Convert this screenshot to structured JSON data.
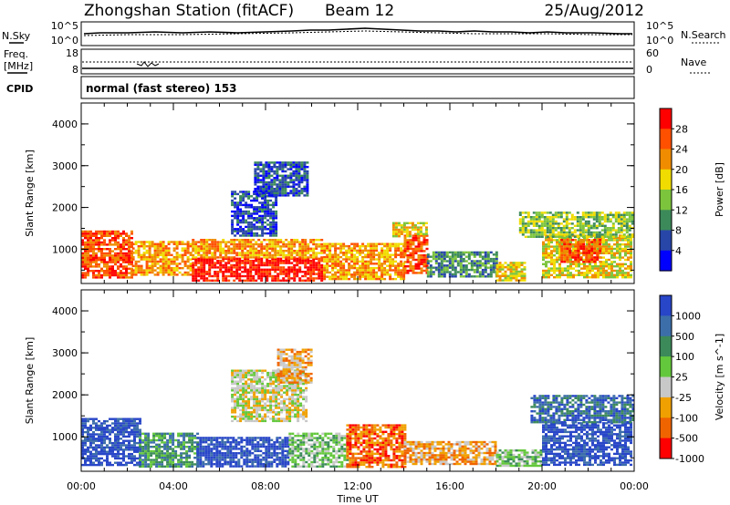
{
  "header": {
    "station": "Zhongshan Station (fitACF)",
    "beam": "Beam 12",
    "date": "25/Aug/2012"
  },
  "strips": {
    "nsky_label": "N.Sky",
    "nsky_ticks": [
      "10^5",
      "10^0"
    ],
    "nsearch_label": "N.Search",
    "nsearch_ticks": [
      "10^5",
      "10^0"
    ],
    "freq_label": "Freq.",
    "freq_unit": "[MHz]",
    "freq_ticks": [
      "18",
      "8"
    ],
    "nave_label": "Nave",
    "nave_ticks": [
      "60",
      "0"
    ],
    "cpid_label": "CPID",
    "cpid_mode": "normal (fast stereo) 153"
  },
  "chart_data": [
    {
      "type": "heatmap",
      "name": "power-panel",
      "ylabel": "Slant Range [km]",
      "ylim": [
        180,
        4500
      ],
      "yticks": [
        "1000",
        "2000",
        "3000",
        "4000"
      ],
      "ytick_values": [
        1000,
        2000,
        3000,
        4000
      ],
      "xlim": [
        0,
        24
      ],
      "colorbar_label": "Power [dB]",
      "colorbar_ticks": [
        "4",
        "8",
        "12",
        "16",
        "20",
        "24",
        "28"
      ],
      "colors": [
        "#0000ff",
        "#2846a8",
        "#3c8a5a",
        "#7cc43c",
        "#f0dc00",
        "#f08c00",
        "#ff5000",
        "#ff0000"
      ],
      "bands": [
        {
          "t0": 0.0,
          "t1": 2.2,
          "r0": 350,
          "r1": 1450,
          "level": 6
        },
        {
          "t0": 2.2,
          "t1": 4.8,
          "r0": 400,
          "r1": 1200,
          "level": 5
        },
        {
          "t0": 4.8,
          "t1": 10.5,
          "r0": 250,
          "r1": 800,
          "level": 7
        },
        {
          "t0": 4.8,
          "t1": 10.5,
          "r0": 800,
          "r1": 1250,
          "level": 5
        },
        {
          "t0": 10.5,
          "t1": 14.0,
          "r0": 300,
          "r1": 1150,
          "level": 5
        },
        {
          "t0": 14.0,
          "t1": 15.0,
          "r0": 450,
          "r1": 1350,
          "level": 6
        },
        {
          "t0": 15.0,
          "t1": 18.0,
          "r0": 350,
          "r1": 950,
          "level": 2
        },
        {
          "t0": 18.0,
          "t1": 19.3,
          "r0": 250,
          "r1": 700,
          "level": 4
        },
        {
          "t0": 20.0,
          "t1": 23.9,
          "r0": 350,
          "r1": 1350,
          "level": 4
        },
        {
          "t0": 20.8,
          "t1": 22.5,
          "r0": 700,
          "r1": 1250,
          "level": 6
        },
        {
          "t0": 6.5,
          "t1": 8.5,
          "r0": 1350,
          "r1": 2400,
          "level": 1
        },
        {
          "t0": 7.5,
          "t1": 9.8,
          "r0": 2300,
          "r1": 3100,
          "level": 1
        },
        {
          "t0": 13.5,
          "t1": 15.0,
          "r0": 1300,
          "r1": 1650,
          "level": 4
        },
        {
          "t0": 19.0,
          "t1": 23.9,
          "r0": 1300,
          "r1": 1900,
          "level": 3
        }
      ]
    },
    {
      "type": "heatmap",
      "name": "velocity-panel",
      "ylabel": "Slant Range [km]",
      "ylim": [
        180,
        4500
      ],
      "yticks": [
        "1000",
        "2000",
        "3000",
        "4000"
      ],
      "ytick_values": [
        1000,
        2000,
        3000,
        4000
      ],
      "xlim": [
        0,
        24
      ],
      "xticks": [
        "00:00",
        "04:00",
        "08:00",
        "12:00",
        "16:00",
        "20:00",
        "00:00"
      ],
      "xtick_values": [
        0,
        4,
        8,
        12,
        16,
        20,
        24
      ],
      "xlabel": "Time UT",
      "colorbar_label": "Velocity [m s^-1]",
      "colorbar_ticks": [
        "1000",
        "500",
        "100",
        "25",
        "-25",
        "-100",
        "-500",
        "-1000"
      ],
      "colors": [
        "#2846c8",
        "#3c6eaa",
        "#3c8a5a",
        "#64c83c",
        "#c8c8c8",
        "#f0a000",
        "#f06400",
        "#ff0000"
      ],
      "bands": [
        {
          "t0": 0.0,
          "t1": 2.5,
          "r0": 350,
          "r1": 1450,
          "level": 0
        },
        {
          "t0": 2.5,
          "t1": 5.0,
          "r0": 300,
          "r1": 1100,
          "level": 2
        },
        {
          "t0": 5.0,
          "t1": 9.0,
          "r0": 300,
          "r1": 1000,
          "level": 0
        },
        {
          "t0": 9.0,
          "t1": 11.5,
          "r0": 300,
          "r1": 1100,
          "level": 3
        },
        {
          "t0": 11.5,
          "t1": 14.0,
          "r0": 300,
          "r1": 1300,
          "level": 6
        },
        {
          "t0": 14.0,
          "t1": 18.0,
          "r0": 350,
          "r1": 900,
          "level": 5
        },
        {
          "t0": 18.0,
          "t1": 20.0,
          "r0": 300,
          "r1": 700,
          "level": 3
        },
        {
          "t0": 20.0,
          "t1": 23.9,
          "r0": 350,
          "r1": 1350,
          "level": 0
        },
        {
          "t0": 6.5,
          "t1": 9.8,
          "r0": 1400,
          "r1": 2600,
          "level": 4
        },
        {
          "t0": 8.5,
          "t1": 10.0,
          "r0": 2300,
          "r1": 3100,
          "level": 5
        },
        {
          "t0": 19.5,
          "t1": 23.9,
          "r0": 1350,
          "r1": 2000,
          "level": 1
        }
      ]
    }
  ]
}
